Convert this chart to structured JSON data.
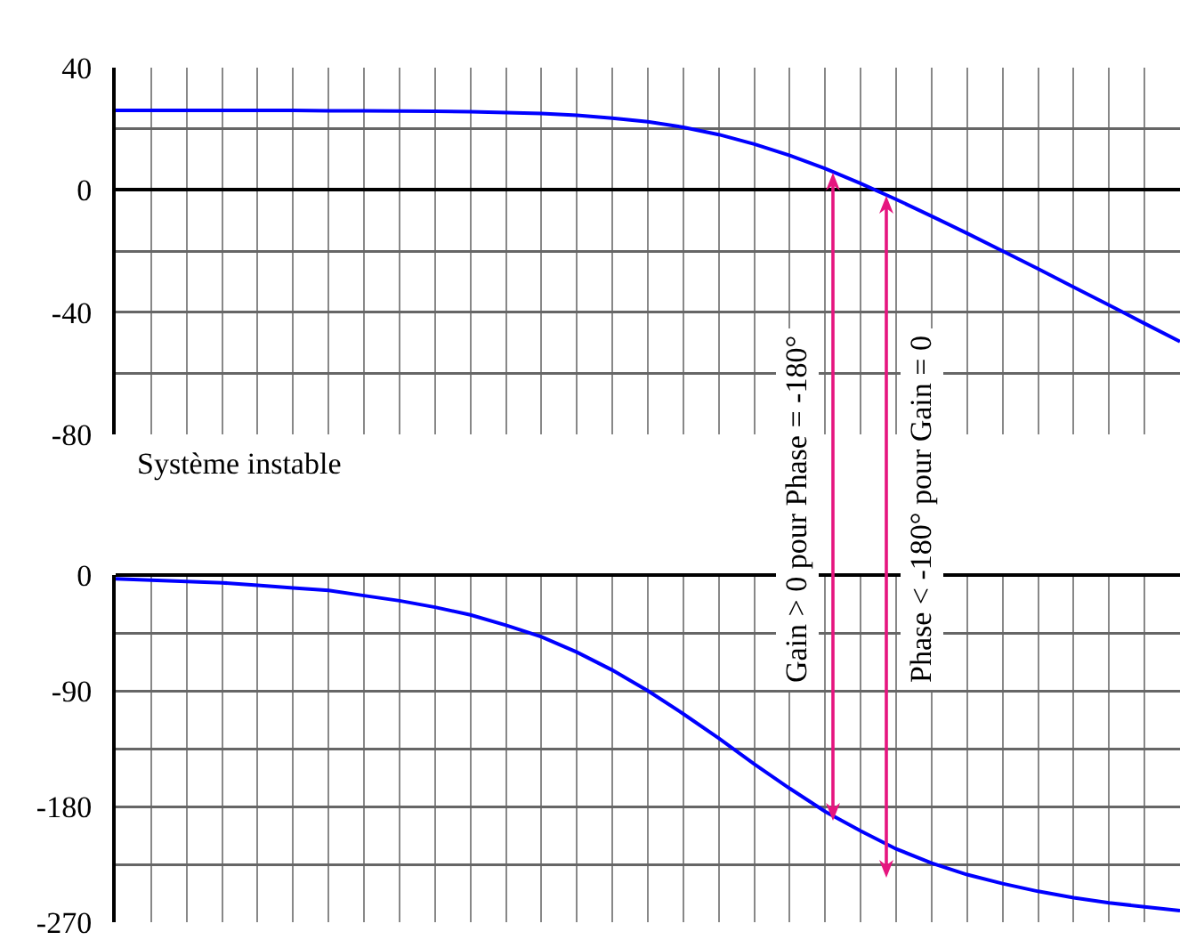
{
  "chart_data": [
    {
      "type": "line",
      "categories": [
        null,
        null,
        null,
        null,
        null,
        null,
        null,
        null,
        null,
        null,
        null,
        null,
        null,
        null,
        null,
        null,
        null,
        null,
        null,
        null,
        null,
        null,
        null,
        null,
        null,
        null,
        null,
        null,
        null,
        null,
        null
      ],
      "series": [
        {
          "color": "#0000ff",
          "values": [
            26,
            26,
            26,
            26,
            26,
            26,
            25.9,
            25.9,
            25.8,
            25.7,
            25.6,
            25.3,
            25,
            24.4,
            23.5,
            22.3,
            20.5,
            18.1,
            15,
            11.3,
            7,
            2.1,
            -3.1,
            -8.6,
            -14.2,
            -20,
            -25.8,
            -31.8,
            -37.7,
            -43.7,
            -49.6
          ]
        }
      ],
      "ylim": [
        -80,
        40
      ],
      "yticks": [
        40,
        {
          "value": 20,
          "label": null
        },
        0,
        {
          "value": -20,
          "label": null
        },
        -40,
        {
          "value": -60,
          "label": null
        },
        -80
      ],
      "grid": true,
      "annotations": [
        "Système instable",
        "Gain > 0 pour Phase = -180°",
        "Phase < -180° pour Gain = 0"
      ]
    },
    {
      "type": "line",
      "categories": [
        null,
        null,
        null,
        null,
        null,
        null,
        null,
        null,
        null,
        null,
        null,
        null,
        null,
        null,
        null,
        null,
        null,
        null,
        null,
        null,
        null,
        null,
        null,
        null,
        null,
        null,
        null,
        null,
        null,
        null,
        null
      ],
      "series": [
        {
          "color": "#0000ff",
          "values": [
            -3,
            -4,
            -5,
            -6,
            -8,
            -10,
            -12,
            -16,
            -20,
            -25,
            -31,
            -39,
            -48,
            -60,
            -74,
            -90,
            -108,
            -127,
            -147,
            -166,
            -184,
            -199,
            -213,
            -224,
            -233,
            -240,
            -246,
            -251,
            -255,
            -258,
            -261
          ]
        }
      ],
      "ylim": [
        -270,
        0
      ],
      "yticks": [
        0,
        {
          "value": -45,
          "label": null
        },
        -90,
        {
          "value": -135,
          "label": null
        },
        -180,
        {
          "value": -225,
          "label": null
        },
        -270
      ],
      "grid": true
    }
  ]
}
